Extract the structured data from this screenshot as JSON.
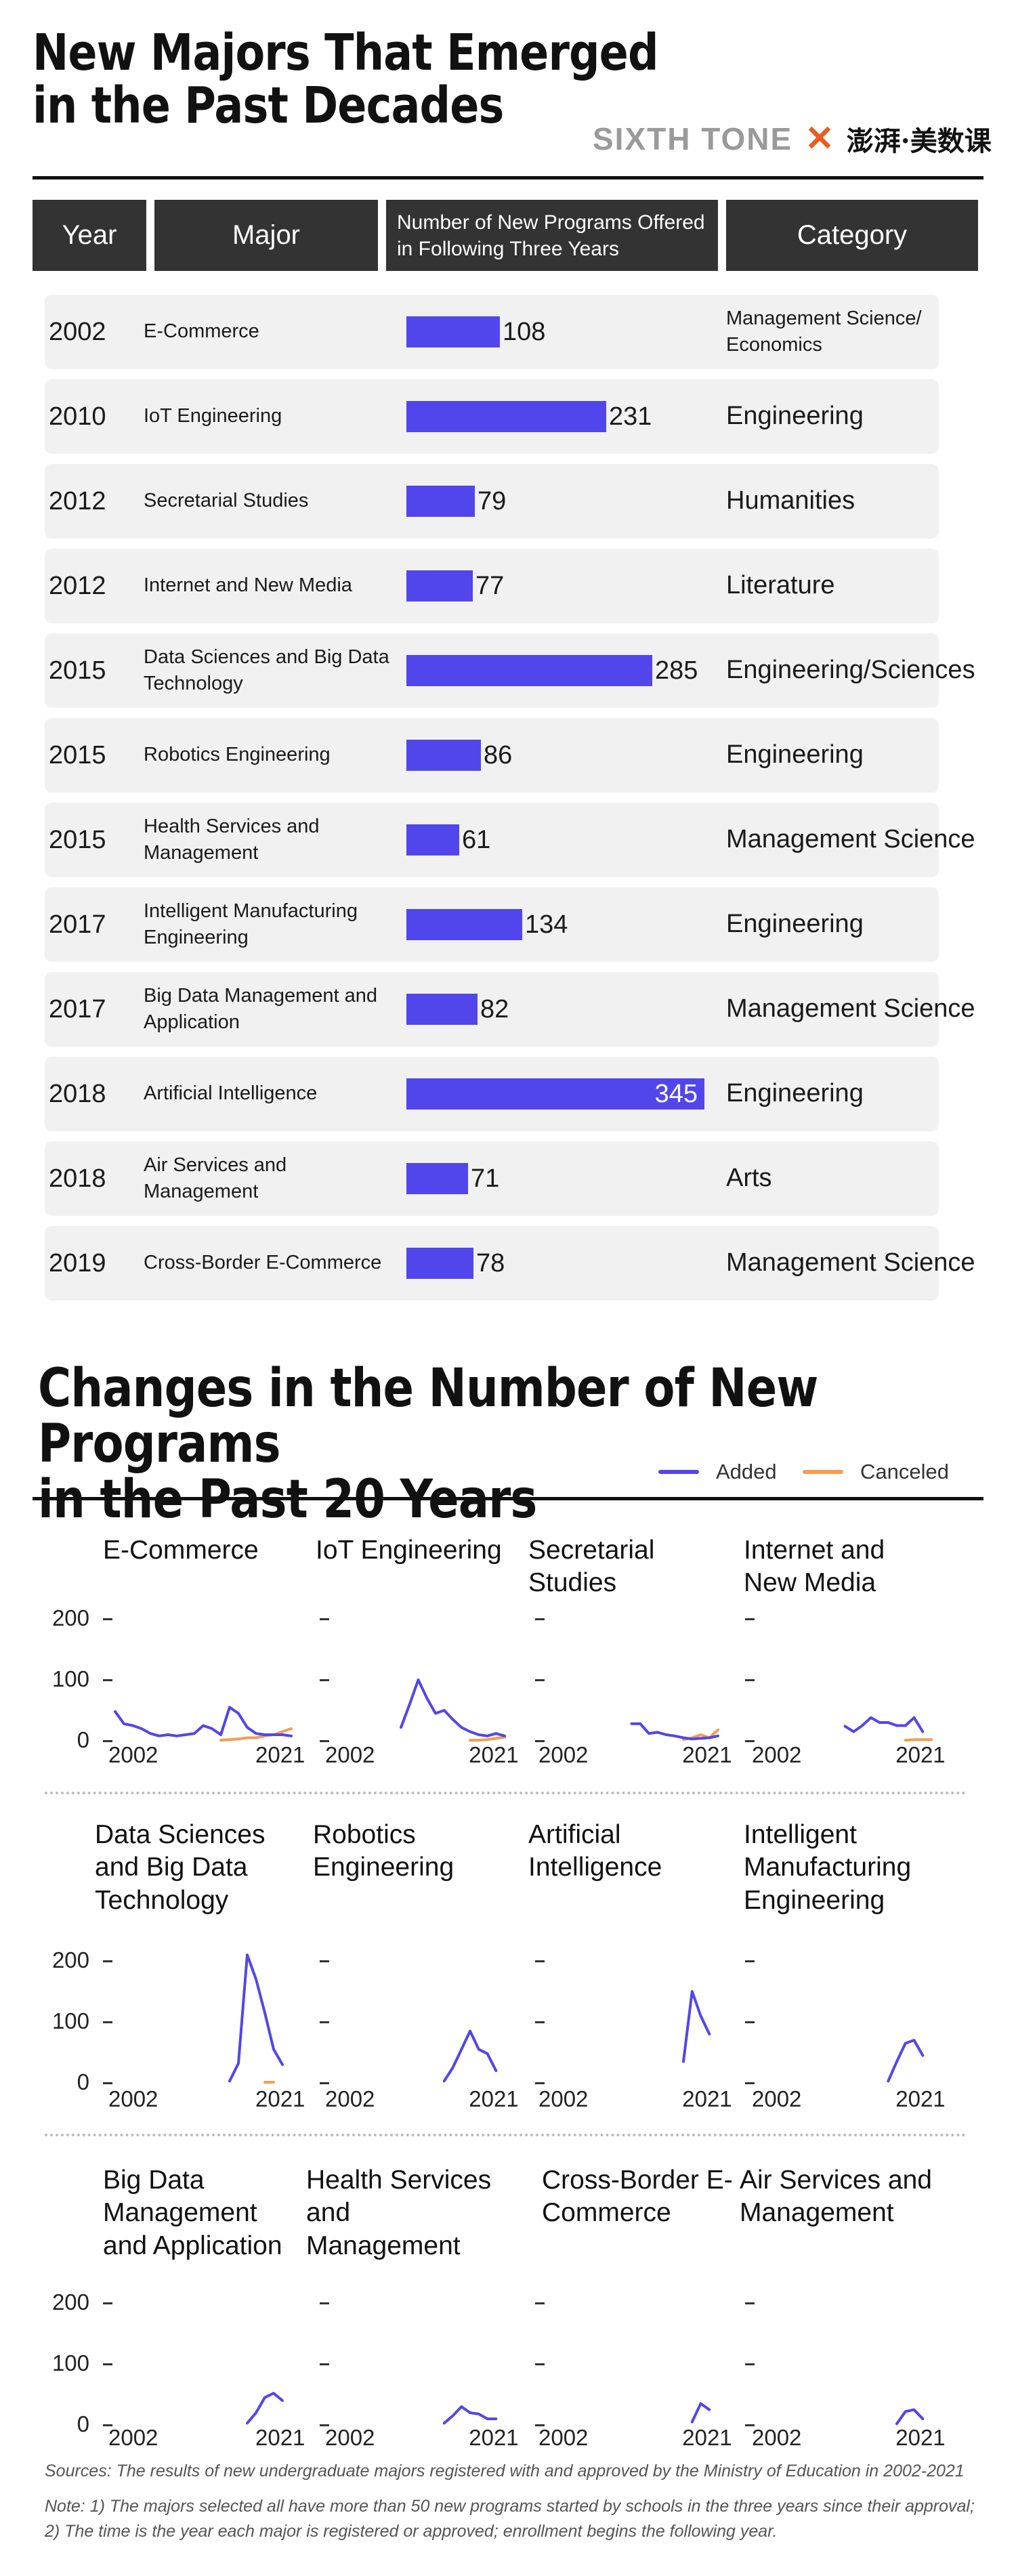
{
  "title1": [
    "New Majors That Emerged",
    "in the Past Decades"
  ],
  "brand": {
    "sixth_tone": "SIXTH TONE",
    "cross": "✕",
    "cn": "澎湃·美数课"
  },
  "table": {
    "headers": [
      "Year",
      "Major",
      "Number of New Programs Offered in Following Three Years",
      "Category"
    ],
    "rows": [
      {
        "year": "2002",
        "major": "E-Commerce",
        "programs": 108,
        "category": "Management Science/ Economics"
      },
      {
        "year": "2010",
        "major": "IoT Engineering",
        "programs": 231,
        "category": "Engineering"
      },
      {
        "year": "2012",
        "major": "Secretarial Studies",
        "programs": 79,
        "category": "Humanities"
      },
      {
        "year": "2012",
        "major": "Internet and New Media",
        "programs": 77,
        "category": "Literature"
      },
      {
        "year": "2015",
        "major": "Data Sciences and Big Data Technology",
        "programs": 285,
        "category": "Engineering/Sciences"
      },
      {
        "year": "2015",
        "major": "Robotics Engineering",
        "programs": 86,
        "category": "Engineering"
      },
      {
        "year": "2015",
        "major": "Health Services and Management",
        "programs": 61,
        "category": "Management Science"
      },
      {
        "year": "2017",
        "major": "Intelligent Manufacturing Engineering",
        "programs": 134,
        "category": "Engineering"
      },
      {
        "year": "2017",
        "major": "Big Data Management and Application",
        "programs": 82,
        "category": "Management Science"
      },
      {
        "year": "2018",
        "major": "Artificial Intelligence",
        "programs": 345,
        "category": "Engineering"
      },
      {
        "year": "2018",
        "major": "Air Services and Management",
        "programs": 71,
        "category": "Arts"
      },
      {
        "year": "2019",
        "major": "Cross-Border E-Commerce",
        "programs": 78,
        "category": "Management Science"
      }
    ]
  },
  "title2": [
    "Changes in the Number of New Programs",
    "in the Past 20 Years"
  ],
  "legend": {
    "added": "Added",
    "canceled": "Canceled"
  },
  "colors": {
    "added": "#5146ec",
    "canceled": "#f59c4f",
    "header_bg": "#333333",
    "row_bg": "#f1f1f1"
  },
  "footer": {
    "sources": "Sources:  The results of new undergraduate majors registered with and approved by the Ministry of Education in 2002-2021",
    "note1": "Note:  1) The majors selected all have more than 50 new programs started by schools in the three years since their approval;",
    "note2": "2) The time is the year each major is registered or approved; enrollment begins the following year."
  },
  "chart_data": [
    {
      "type": "bar",
      "categories": [
        "E-Commerce",
        "IoT Engineering",
        "Secretarial Studies",
        "Internet and New Media",
        "Data Sciences and Big Data Technology",
        "Robotics Engineering",
        "Health Services and Management",
        "Intelligent Manufacturing Engineering",
        "Big Data Management and Application",
        "Artificial Intelligence",
        "Air Services and Management",
        "Cross-Border E-Commerce"
      ],
      "values": [
        108,
        231,
        79,
        77,
        285,
        86,
        61,
        134,
        82,
        345,
        71,
        78
      ],
      "title": "New Majors That Emerged in the Past Decades",
      "xlabel": "Number of New Programs Offered in Following Three Years",
      "ylabel": "Major"
    },
    {
      "type": "line",
      "title": "Changes in the Number of New Programs in the Past 20 Years",
      "x": [
        2002,
        2003,
        2004,
        2005,
        2006,
        2007,
        2008,
        2009,
        2010,
        2011,
        2012,
        2013,
        2014,
        2015,
        2016,
        2017,
        2018,
        2019,
        2020,
        2021,
        2022
      ],
      "xticks": [
        "2002",
        "2021"
      ],
      "ylim": [
        0,
        200
      ],
      "yticks": [
        0,
        100,
        200
      ],
      "panels": [
        {
          "name": "E-Commerce",
          "row": 0,
          "col": 0,
          "ytick_labels": true,
          "added": [
            [
              2002,
              48
            ],
            [
              2003,
              28
            ],
            [
              2004,
              25
            ],
            [
              2005,
              20
            ],
            [
              2006,
              12
            ],
            [
              2007,
              8
            ],
            [
              2008,
              10
            ],
            [
              2009,
              8
            ],
            [
              2010,
              10
            ],
            [
              2011,
              12
            ],
            [
              2012,
              25
            ],
            [
              2013,
              20
            ],
            [
              2014,
              10
            ],
            [
              2015,
              55
            ],
            [
              2016,
              45
            ],
            [
              2017,
              22
            ],
            [
              2018,
              12
            ],
            [
              2019,
              10
            ],
            [
              2020,
              10
            ],
            [
              2021,
              10
            ],
            [
              2022,
              8
            ]
          ],
          "canceled": [
            [
              2014,
              1
            ],
            [
              2015,
              2
            ],
            [
              2016,
              3
            ],
            [
              2017,
              5
            ],
            [
              2018,
              5
            ],
            [
              2019,
              8
            ],
            [
              2020,
              10
            ],
            [
              2021,
              15
            ],
            [
              2022,
              20
            ]
          ]
        },
        {
          "name": "IoT Engineering",
          "row": 0,
          "col": 1,
          "ytick_labels": false,
          "added": [
            [
              2010,
              22
            ],
            [
              2011,
              60
            ],
            [
              2012,
              100
            ],
            [
              2013,
              70
            ],
            [
              2014,
              45
            ],
            [
              2015,
              50
            ],
            [
              2016,
              35
            ],
            [
              2017,
              22
            ],
            [
              2018,
              15
            ],
            [
              2019,
              10
            ],
            [
              2020,
              8
            ],
            [
              2021,
              12
            ],
            [
              2022,
              8
            ]
          ],
          "canceled": [
            [
              2018,
              1
            ],
            [
              2019,
              1
            ],
            [
              2020,
              2
            ],
            [
              2021,
              4
            ],
            [
              2022,
              6
            ]
          ]
        },
        {
          "name": "Secretarial Studies",
          "row": 0,
          "col": 2,
          "ytick_labels": false,
          "added": [
            [
              2012,
              28
            ],
            [
              2013,
              28
            ],
            [
              2014,
              12
            ],
            [
              2015,
              14
            ],
            [
              2016,
              10
            ],
            [
              2017,
              8
            ],
            [
              2018,
              5
            ],
            [
              2019,
              3
            ],
            [
              2020,
              4
            ],
            [
              2021,
              5
            ],
            [
              2022,
              8
            ]
          ],
          "canceled": [
            [
              2018,
              2
            ],
            [
              2019,
              5
            ],
            [
              2020,
              10
            ],
            [
              2021,
              5
            ],
            [
              2022,
              18
            ]
          ]
        },
        {
          "name": "Internet and New Media",
          "row": 0,
          "col": 3,
          "ytick_labels": false,
          "added": [
            [
              2012,
              24
            ],
            [
              2013,
              15
            ],
            [
              2014,
              25
            ],
            [
              2015,
              38
            ],
            [
              2016,
              30
            ],
            [
              2017,
              30
            ],
            [
              2018,
              25
            ],
            [
              2019,
              25
            ],
            [
              2020,
              38
            ],
            [
              2021,
              15
            ]
          ],
          "canceled": [
            [
              2019,
              1
            ],
            [
              2020,
              2
            ],
            [
              2021,
              2
            ],
            [
              2022,
              2
            ]
          ]
        },
        {
          "name": "Data Sciences and Big Data Technology",
          "row": 1,
          "col": 0,
          "ytick_labels": true,
          "added": [
            [
              2015,
              3
            ],
            [
              2016,
              32
            ],
            [
              2017,
              210
            ],
            [
              2018,
              170
            ],
            [
              2019,
              115
            ],
            [
              2020,
              55
            ],
            [
              2021,
              30
            ]
          ],
          "canceled": [
            [
              2019,
              1
            ],
            [
              2020,
              1
            ]
          ]
        },
        {
          "name": "Robotics Engineering",
          "row": 1,
          "col": 1,
          "ytick_labels": false,
          "added": [
            [
              2015,
              3
            ],
            [
              2016,
              25
            ],
            [
              2017,
              55
            ],
            [
              2018,
              85
            ],
            [
              2019,
              55
            ],
            [
              2020,
              48
            ],
            [
              2021,
              20
            ]
          ],
          "canceled": []
        },
        {
          "name": "Artificial Intelligence",
          "row": 1,
          "col": 2,
          "ytick_labels": false,
          "added": [
            [
              2018,
              35
            ],
            [
              2019,
              150
            ],
            [
              2020,
              110
            ],
            [
              2021,
              80
            ]
          ],
          "canceled": []
        },
        {
          "name": "Intelligent Manufacturing Engineering",
          "row": 1,
          "col": 3,
          "ytick_labels": false,
          "added": [
            [
              2017,
              3
            ],
            [
              2018,
              35
            ],
            [
              2019,
              65
            ],
            [
              2020,
              70
            ],
            [
              2021,
              45
            ]
          ],
          "canceled": []
        },
        {
          "name": "Big Data Management and Application",
          "row": 2,
          "col": 0,
          "ytick_labels": true,
          "added": [
            [
              2017,
              3
            ],
            [
              2018,
              20
            ],
            [
              2019,
              45
            ],
            [
              2020,
              52
            ],
            [
              2021,
              40
            ]
          ],
          "canceled": []
        },
        {
          "name": "Health Services and Management",
          "row": 2,
          "col": 1,
          "ytick_labels": false,
          "added": [
            [
              2015,
              3
            ],
            [
              2016,
              15
            ],
            [
              2017,
              30
            ],
            [
              2018,
              20
            ],
            [
              2019,
              18
            ],
            [
              2020,
              10
            ],
            [
              2021,
              10
            ]
          ],
          "canceled": []
        },
        {
          "name": "Cross-Border E-Commerce",
          "row": 2,
          "col": 2,
          "ytick_labels": false,
          "added": [
            [
              2019,
              5
            ],
            [
              2020,
              35
            ],
            [
              2021,
              25
            ]
          ],
          "canceled": []
        },
        {
          "name": "Air Services and Management",
          "row": 2,
          "col": 3,
          "ytick_labels": false,
          "added": [
            [
              2018,
              2
            ],
            [
              2019,
              22
            ],
            [
              2020,
              25
            ],
            [
              2021,
              10
            ]
          ],
          "canceled": []
        }
      ]
    }
  ]
}
